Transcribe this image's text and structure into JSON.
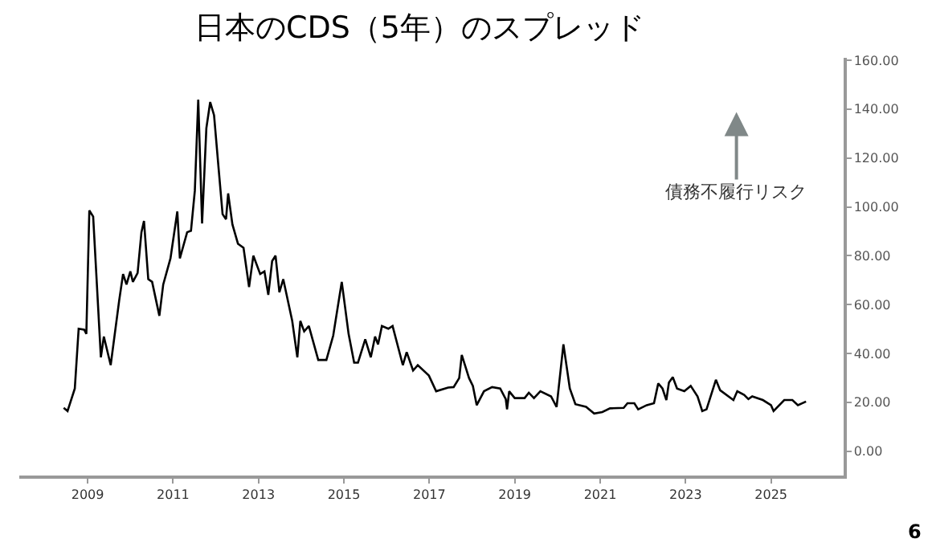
{
  "chart_data": {
    "type": "line",
    "title": "日本のCDS（5年）のスプレッド",
    "x": [
      2008.44,
      2008.53,
      2008.7,
      2008.79,
      2008.92,
      2008.97,
      2009.04,
      2009.13,
      2009.31,
      2009.38,
      2009.54,
      2009.74,
      2009.83,
      2009.91,
      2010.0,
      2010.06,
      2010.17,
      2010.26,
      2010.32,
      2010.42,
      2010.51,
      2010.68,
      2010.77,
      2010.94,
      2011.1,
      2011.16,
      2011.33,
      2011.42,
      2011.51,
      2011.59,
      2011.68,
      2011.78,
      2011.87,
      2011.96,
      2012.07,
      2012.16,
      2012.24,
      2012.29,
      2012.39,
      2012.52,
      2012.65,
      2012.78,
      2012.88,
      2013.04,
      2013.14,
      2013.23,
      2013.32,
      2013.4,
      2013.49,
      2013.58,
      2013.79,
      2013.91,
      2013.98,
      2014.07,
      2014.18,
      2014.4,
      2014.59,
      2014.75,
      2014.95,
      2015.11,
      2015.24,
      2015.33,
      2015.5,
      2015.63,
      2015.73,
      2015.8,
      2015.89,
      2016.04,
      2016.14,
      2016.38,
      2016.47,
      2016.62,
      2016.73,
      2016.99,
      2017.16,
      2017.44,
      2017.57,
      2017.7,
      2017.76,
      2017.93,
      2018.02,
      2018.11,
      2018.28,
      2018.47,
      2018.66,
      2018.79,
      2018.82,
      2018.87,
      2019.0,
      2019.23,
      2019.33,
      2019.45,
      2019.6,
      2019.85,
      2019.98,
      2020.14,
      2020.29,
      2020.42,
      2020.67,
      2020.86,
      2021.05,
      2021.23,
      2021.55,
      2021.64,
      2021.8,
      2021.89,
      2022.09,
      2022.26,
      2022.36,
      2022.46,
      2022.55,
      2022.61,
      2022.7,
      2022.8,
      2022.97,
      2023.12,
      2023.28,
      2023.39,
      2023.49,
      2023.71,
      2023.81,
      2024.12,
      2024.21,
      2024.37,
      2024.47,
      2024.56,
      2024.81,
      2025.0,
      2025.06,
      2025.31,
      2025.5,
      2025.63,
      2025.82
    ],
    "series": [
      {
        "color": "#000000",
        "values": [
          17.7,
          16.4,
          25.6,
          50.1,
          49.7,
          48,
          98.5,
          96,
          38.4,
          46.9,
          35.2,
          61.8,
          72.5,
          68.2,
          73.6,
          69.3,
          72.9,
          89.6,
          94.2,
          70.4,
          69.3,
          55.4,
          68.2,
          78.9,
          98.1,
          78.9,
          89.6,
          90.2,
          106.6,
          143.9,
          93.2,
          132.2,
          142.9,
          137.5,
          115.1,
          97,
          94.9,
          105.5,
          92.8,
          84.9,
          83.2,
          67.2,
          80,
          72.5,
          73.6,
          64,
          77.8,
          80,
          65,
          70.4,
          53.3,
          38.4,
          53.3,
          49,
          51.2,
          37.3,
          37.3,
          47.3,
          69.3,
          48,
          36.2,
          36.2,
          45.8,
          38.4,
          46.9,
          43.7,
          51.2,
          50.1,
          51.2,
          35.2,
          40.5,
          33,
          35.2,
          30.9,
          24.5,
          26,
          26.2,
          29.9,
          39.4,
          29.9,
          26.7,
          18.8,
          24.5,
          26.2,
          25.6,
          21.3,
          17.1,
          24.5,
          21.7,
          21.7,
          23.9,
          21.7,
          24.5,
          22.4,
          18.1,
          43.7,
          25.6,
          19.2,
          18.1,
          15.4,
          16,
          17.5,
          17.7,
          19.6,
          19.6,
          17.1,
          18.8,
          19.6,
          27.7,
          25.6,
          20.9,
          28.1,
          30.3,
          25.6,
          24.5,
          26.7,
          22.4,
          16.4,
          17.1,
          29.2,
          24.9,
          20.9,
          24.5,
          23,
          21.3,
          22.4,
          20.9,
          18.8,
          16.4,
          20.9,
          20.9,
          18.8,
          20.3
        ]
      }
    ],
    "xlim": [
      2007.4,
      2026.7
    ],
    "xticks": [
      2009,
      2011,
      2013,
      2015,
      2017,
      2019,
      2021,
      2023,
      2025
    ],
    "ylim": [
      -10,
      161
    ],
    "yticks": [
      {
        "value": 0,
        "label": "0.00"
      },
      {
        "value": 20,
        "label": "20.00"
      },
      {
        "value": 40,
        "label": "40.00"
      },
      {
        "value": 60,
        "label": "60.00"
      },
      {
        "value": 80,
        "label": "80.00"
      },
      {
        "value": 100,
        "label": "100.00"
      },
      {
        "value": 120,
        "label": "120.00"
      },
      {
        "value": 140,
        "label": "140.00"
      },
      {
        "value": 160,
        "label": "160.00"
      }
    ],
    "marker": "none",
    "line_style": "solid",
    "annotations": [
      "債務不履行リスク",
      "6"
    ]
  }
}
